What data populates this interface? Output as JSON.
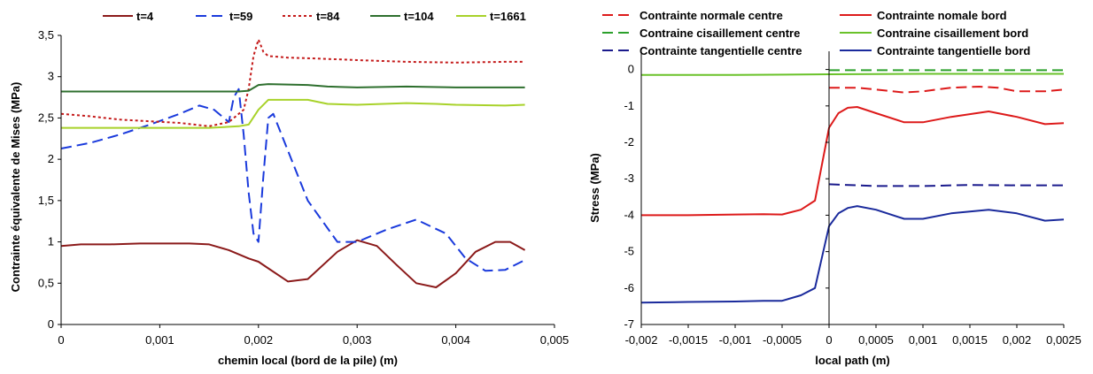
{
  "chart_data": [
    {
      "type": "line",
      "title": "",
      "xlabel": "chemin local (bord de la pile) (m)",
      "ylabel": "Contrainte équivalente de Mises (MPa)",
      "xlim": [
        0,
        0.005
      ],
      "ylim": [
        0,
        3.5
      ],
      "x_ticks": [
        0,
        0.001,
        0.002,
        0.003,
        0.004,
        0.005
      ],
      "x_tick_labels": [
        "0",
        "0,001",
        "0,002",
        "0,003",
        "0,004",
        "0,005"
      ],
      "y_ticks": [
        0,
        0.5,
        1,
        1.5,
        2,
        2.5,
        3,
        3.5
      ],
      "y_tick_labels": [
        "0",
        "0,5",
        "1",
        "1,5",
        "2",
        "2,5",
        "3",
        "3,5"
      ],
      "grid": false,
      "legend_position": "top",
      "series": [
        {
          "name": "t=4",
          "color": "#8b1a1a",
          "dash": "solid",
          "x": [
            0,
            0.0002,
            0.0005,
            0.0008,
            0.001,
            0.0013,
            0.0015,
            0.0017,
            0.0019,
            0.002,
            0.0021,
            0.0023,
            0.0025,
            0.0028,
            0.003,
            0.0032,
            0.0034,
            0.0036,
            0.0038,
            0.004,
            0.0042,
            0.0044,
            0.00455,
            0.0047
          ],
          "y": [
            0.95,
            0.97,
            0.97,
            0.98,
            0.98,
            0.98,
            0.97,
            0.9,
            0.8,
            0.76,
            0.68,
            0.52,
            0.55,
            0.88,
            1.02,
            0.95,
            0.72,
            0.5,
            0.45,
            0.62,
            0.88,
            1.0,
            1.0,
            0.9
          ]
        },
        {
          "name": "t=59",
          "color": "#1a3adc",
          "dash": "long",
          "x": [
            0,
            0.0003,
            0.0006,
            0.0009,
            0.0012,
            0.0014,
            0.00155,
            0.0017,
            0.00175,
            0.0018,
            0.00185,
            0.0019,
            0.00195,
            0.002,
            0.00205,
            0.0021,
            0.00215,
            0.0022,
            0.0025,
            0.0028,
            0.003,
            0.0033,
            0.0036,
            0.0039,
            0.0041,
            0.0043,
            0.0045,
            0.0047
          ],
          "y": [
            2.13,
            2.2,
            2.3,
            2.42,
            2.55,
            2.65,
            2.6,
            2.45,
            2.75,
            2.85,
            2.3,
            1.6,
            1.1,
            1.0,
            1.8,
            2.5,
            2.55,
            2.4,
            1.5,
            1.0,
            1.0,
            1.15,
            1.27,
            1.1,
            0.8,
            0.65,
            0.66,
            0.78
          ]
        },
        {
          "name": "t=84",
          "color": "#c41a1a",
          "dash": "dot",
          "x": [
            0,
            0.0003,
            0.0006,
            0.0009,
            0.0012,
            0.0015,
            0.0017,
            0.00185,
            0.0019,
            0.00195,
            0.002,
            0.00205,
            0.0021,
            0.0023,
            0.0026,
            0.003,
            0.0035,
            0.004,
            0.0045,
            0.0047
          ],
          "y": [
            2.55,
            2.52,
            2.48,
            2.46,
            2.44,
            2.4,
            2.45,
            2.6,
            2.85,
            3.25,
            3.45,
            3.3,
            3.25,
            3.23,
            3.22,
            3.2,
            3.18,
            3.17,
            3.18,
            3.18
          ]
        },
        {
          "name": "t=104",
          "color": "#2e6f2e",
          "dash": "solid",
          "x": [
            0,
            0.0005,
            0.001,
            0.0015,
            0.0018,
            0.0019,
            0.002,
            0.0021,
            0.0025,
            0.0027,
            0.003,
            0.0035,
            0.004,
            0.0045,
            0.0047
          ],
          "y": [
            2.82,
            2.82,
            2.82,
            2.82,
            2.82,
            2.83,
            2.9,
            2.91,
            2.9,
            2.88,
            2.87,
            2.88,
            2.87,
            2.87,
            2.87
          ]
        },
        {
          "name": "t=1661",
          "color": "#a8d22a",
          "dash": "solid",
          "x": [
            0,
            0.0005,
            0.001,
            0.0015,
            0.0018,
            0.0019,
            0.002,
            0.0021,
            0.0025,
            0.0027,
            0.003,
            0.0035,
            0.0038,
            0.004,
            0.0045,
            0.0047
          ],
          "y": [
            2.38,
            2.38,
            2.38,
            2.38,
            2.4,
            2.42,
            2.6,
            2.72,
            2.72,
            2.67,
            2.66,
            2.68,
            2.67,
            2.66,
            2.65,
            2.66
          ]
        }
      ]
    },
    {
      "type": "line",
      "title": "",
      "xlabel": "local path (m)",
      "ylabel": "Stress (MPa)",
      "xlim": [
        -0.002,
        0.0025
      ],
      "ylim": [
        -7,
        0.5
      ],
      "x_ticks": [
        -0.002,
        -0.0015,
        -0.001,
        -0.0005,
        0,
        0.0005,
        0.001,
        0.0015,
        0.002,
        0.0025
      ],
      "x_tick_labels": [
        "-0,002",
        "-0,0015",
        "-0,001",
        "-0,0005",
        "0",
        "0,0005",
        "0,001",
        "0,0015",
        "0,002",
        "0,0025"
      ],
      "y_ticks": [
        -7,
        -6,
        -5,
        -4,
        -3,
        -2,
        -1,
        0
      ],
      "y_tick_labels": [
        "-7",
        "-6",
        "-5",
        "-4",
        "-3",
        "-2",
        "-1",
        "0"
      ],
      "grid": false,
      "legend_position": "top",
      "series": [
        {
          "name": "Contrainte normale centre",
          "color": "#dd1a1a",
          "dash": "long",
          "x": [
            0,
            0.0003,
            0.0005,
            0.0008,
            0.001,
            0.0013,
            0.0016,
            0.0018,
            0.002,
            0.0023,
            0.0025
          ],
          "y": [
            -0.5,
            -0.5,
            -0.55,
            -0.63,
            -0.6,
            -0.5,
            -0.47,
            -0.5,
            -0.6,
            -0.6,
            -0.55
          ]
        },
        {
          "name": "Contraine cisaillement centre",
          "color": "#2ca02c",
          "dash": "long",
          "x": [
            0,
            0.0005,
            0.001,
            0.0015,
            0.002,
            0.0025
          ],
          "y": [
            -0.02,
            -0.02,
            -0.02,
            -0.02,
            -0.02,
            -0.02
          ]
        },
        {
          "name": "Contrainte tangentielle centre",
          "color": "#1a1a8c",
          "dash": "long",
          "x": [
            0,
            0.0005,
            0.001,
            0.0015,
            0.002,
            0.0025
          ],
          "y": [
            -3.15,
            -3.2,
            -3.2,
            -3.17,
            -3.18,
            -3.18
          ]
        },
        {
          "name": "Contrainte nomale bord",
          "color": "#dd1a1a",
          "dash": "solid",
          "x": [
            -0.002,
            -0.0015,
            -0.001,
            -0.0007,
            -0.0005,
            -0.0003,
            -0.00015,
            0,
            0.0001,
            0.0002,
            0.0003,
            0.0005,
            0.0008,
            0.001,
            0.0013,
            0.0017,
            0.002,
            0.0023,
            0.0025
          ],
          "y": [
            -4.0,
            -4.0,
            -3.98,
            -3.97,
            -3.98,
            -3.85,
            -3.6,
            -1.6,
            -1.2,
            -1.05,
            -1.03,
            -1.2,
            -1.45,
            -1.45,
            -1.3,
            -1.15,
            -1.3,
            -1.5,
            -1.47
          ]
        },
        {
          "name": "Contraine cisaillement bord",
          "color": "#6ac22a",
          "dash": "solid",
          "x": [
            -0.002,
            -0.001,
            0,
            0.001,
            0.002,
            0.0025
          ],
          "y": [
            -0.15,
            -0.15,
            -0.13,
            -0.12,
            -0.12,
            -0.12
          ]
        },
        {
          "name": "Contrainte tangentielle bord",
          "color": "#1a2a9c",
          "dash": "solid",
          "x": [
            -0.002,
            -0.0015,
            -0.001,
            -0.0007,
            -0.0005,
            -0.0003,
            -0.00015,
            0,
            0.0001,
            0.0002,
            0.0003,
            0.0005,
            0.0008,
            0.001,
            0.0013,
            0.0017,
            0.002,
            0.0023,
            0.0025
          ],
          "y": [
            -6.4,
            -6.38,
            -6.37,
            -6.35,
            -6.35,
            -6.2,
            -6.0,
            -4.3,
            -3.95,
            -3.8,
            -3.75,
            -3.85,
            -4.1,
            -4.1,
            -3.95,
            -3.85,
            -3.95,
            -4.15,
            -4.12
          ]
        }
      ]
    }
  ]
}
